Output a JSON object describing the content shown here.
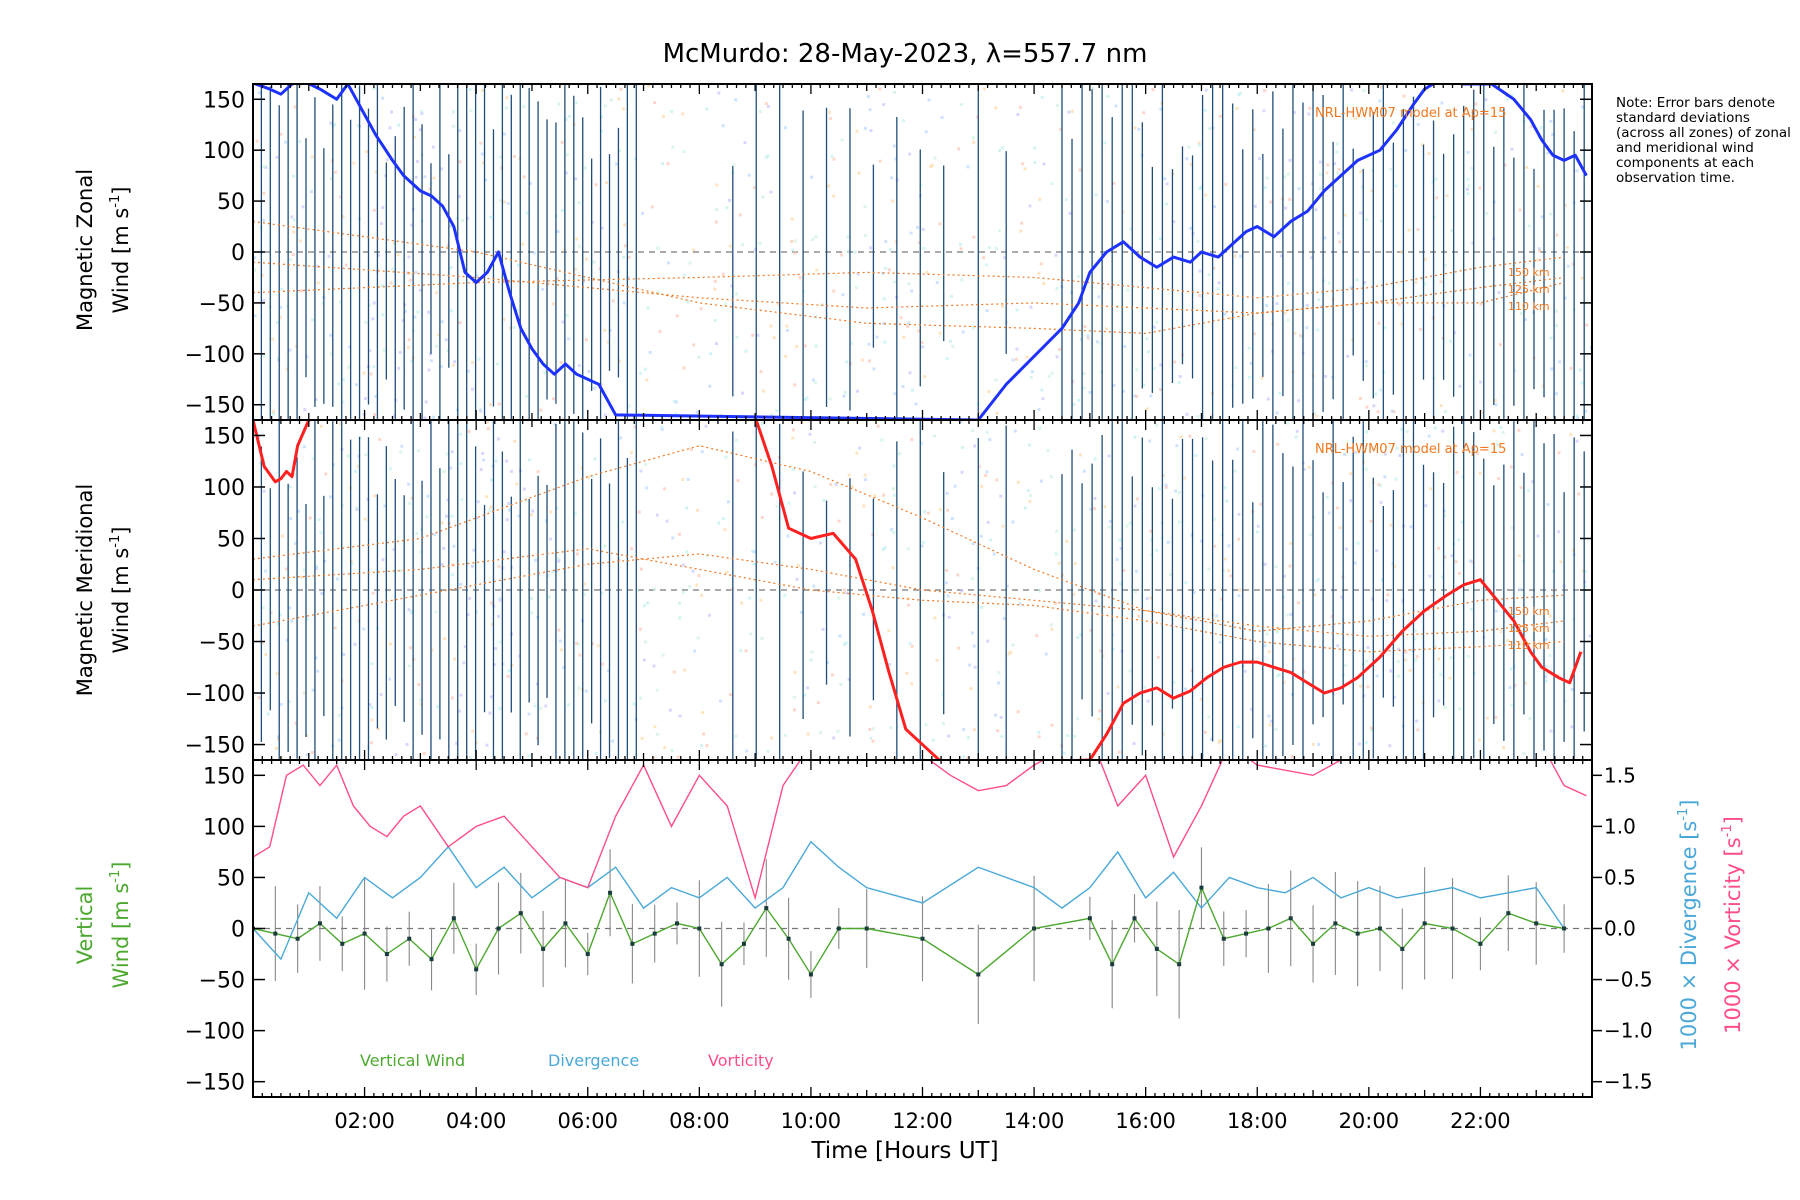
{
  "title": "McMurdo: 28-May-2023, λ=557.7 nm",
  "note": "Note: Error bars denote standard deviations (across all zones) of zonal and meridional wind components at each observation time.",
  "xlabel": "Time [Hours UT]",
  "xticks": [
    "02:00",
    "04:00",
    "06:00",
    "08:00",
    "10:00",
    "12:00",
    "14:00",
    "16:00",
    "18:00",
    "20:00",
    "22:00"
  ],
  "yticks": [
    "150",
    "100",
    "50",
    "0",
    "−50",
    "−100",
    "−150"
  ],
  "right_ticks": [
    "1.5",
    "1.0",
    "0.5",
    "0.0",
    "−0.5",
    "−1.0",
    "−1.5"
  ],
  "panels": {
    "zonal": {
      "ylabel_line1": "Magnetic Zonal",
      "ylabel_line2": "Wind [m s",
      "unit_sup": "-1",
      "model_label": "NRL-HWM07 model at Ap=15",
      "heights": [
        "150 km",
        "125 km",
        "110 km"
      ]
    },
    "meridional": {
      "ylabel_line1": "Magnetic Meridional",
      "ylabel_line2": "Wind [m s",
      "unit_sup": "-1",
      "model_label": "NRL-HWM07 model at Ap=15",
      "heights": [
        "150 km",
        "125 km",
        "110 km"
      ]
    },
    "vertical": {
      "ylabel_line1": "Vertical",
      "ylabel_line2": "Wind [m s",
      "unit_sup": "-1",
      "right_label1": "1000 × Divergence [s",
      "right_label2": "1000 × Vorticity [s",
      "legend": [
        "Vertical Wind",
        "Divergence",
        "Vorticity"
      ]
    }
  },
  "colors": {
    "zonal": "#1e32ff",
    "meridional": "#ff2020",
    "vertical": "#4da830",
    "divergence": "#4aa8d8",
    "vorticity": "#ff4d88",
    "model": "#f07820",
    "errbar": "#1f4e79"
  },
  "chart_data": [
    {
      "type": "line",
      "title": "Magnetic Zonal Wind",
      "xlabel": "Time [Hours UT]",
      "ylabel": "Magnetic Zonal Wind [m s-1]",
      "xlim": [
        0,
        24
      ],
      "ylim": [
        -165,
        165
      ],
      "series": [
        {
          "name": "Zonal wind",
          "x": [
            0.0,
            0.3,
            0.5,
            0.7,
            0.9,
            1.2,
            1.5,
            1.7,
            2.0,
            2.2,
            2.5,
            2.7,
            3.0,
            3.2,
            3.4,
            3.6,
            3.8,
            4.0,
            4.2,
            4.4,
            4.6,
            4.8,
            5.0,
            5.2,
            5.4,
            5.6,
            5.8,
            6.0,
            6.2,
            6.5,
            13.0,
            13.5,
            14.5,
            14.8,
            15.0,
            15.3,
            15.6,
            15.9,
            16.2,
            16.5,
            16.8,
            17.0,
            17.3,
            17.5,
            17.8,
            18.0,
            18.3,
            18.6,
            18.9,
            19.2,
            19.5,
            19.8,
            20.2,
            20.5,
            20.8,
            21.0,
            21.3,
            21.7,
            22.2,
            22.6,
            22.9,
            23.1,
            23.3,
            23.5,
            23.7,
            23.9
          ],
          "values": [
            166,
            160,
            155,
            165,
            168,
            160,
            150,
            165,
            135,
            115,
            90,
            75,
            60,
            55,
            45,
            25,
            -20,
            -30,
            -20,
            0,
            -40,
            -75,
            -95,
            -110,
            -120,
            -110,
            -120,
            -125,
            -130,
            -160,
            -165,
            -130,
            -75,
            -50,
            -20,
            0,
            10,
            -5,
            -15,
            -5,
            -10,
            0,
            -5,
            5,
            20,
            25,
            15,
            30,
            40,
            60,
            75,
            90,
            100,
            120,
            145,
            160,
            170,
            165,
            165,
            150,
            130,
            110,
            95,
            90,
            95,
            75
          ]
        }
      ],
      "model": [
        {
          "name": "150 km",
          "x": [
            0,
            4,
            8,
            11,
            14,
            16,
            18,
            20,
            22,
            23.5
          ],
          "values": [
            -40,
            -30,
            -25,
            -20,
            -25,
            -35,
            -45,
            -35,
            -15,
            -5
          ]
        },
        {
          "name": "125 km",
          "x": [
            0,
            4,
            8,
            11,
            14,
            16,
            18,
            20,
            22,
            23.5
          ],
          "values": [
            -10,
            -25,
            -45,
            -55,
            -50,
            -55,
            -60,
            -50,
            -35,
            -25
          ]
        },
        {
          "name": "110 km",
          "x": [
            0,
            4,
            8,
            11,
            14,
            16,
            18,
            20,
            22,
            23.5
          ],
          "values": [
            30,
            0,
            -50,
            -70,
            -75,
            -80,
            -60,
            -50,
            -50,
            -30
          ]
        }
      ]
    },
    {
      "type": "line",
      "title": "Magnetic Meridional Wind",
      "xlabel": "Time [Hours UT]",
      "ylabel": "Magnetic Meridional Wind [m s-1]",
      "xlim": [
        0,
        24
      ],
      "ylim": [
        -165,
        165
      ],
      "series": [
        {
          "name": "Meridional wind",
          "x": [
            0.0,
            0.2,
            0.4,
            0.5,
            0.6,
            0.7,
            0.8,
            1.0,
            1.2,
            9.0,
            9.3,
            9.6,
            10.0,
            10.4,
            10.8,
            11.1,
            11.4,
            11.7,
            12.0,
            12.4,
            15.0,
            15.3,
            15.6,
            15.9,
            16.2,
            16.5,
            16.8,
            17.1,
            17.4,
            17.7,
            18.0,
            18.3,
            18.6,
            18.9,
            19.2,
            19.5,
            19.8,
            20.2,
            20.6,
            21.0,
            21.4,
            21.7,
            22.0,
            22.3,
            22.6,
            22.9,
            23.1,
            23.4,
            23.6,
            23.8
          ],
          "values": [
            165,
            120,
            105,
            108,
            115,
            110,
            140,
            165,
            168,
            168,
            120,
            60,
            50,
            55,
            30,
            -20,
            -80,
            -135,
            -150,
            -170,
            -165,
            -140,
            -110,
            -100,
            -95,
            -105,
            -98,
            -85,
            -75,
            -70,
            -70,
            -75,
            -80,
            -90,
            -100,
            -95,
            -85,
            -65,
            -40,
            -20,
            -5,
            5,
            10,
            -10,
            -30,
            -60,
            -75,
            -85,
            -90,
            -60
          ]
        }
      ],
      "model": [
        {
          "name": "150 km",
          "x": [
            0,
            3,
            6,
            8,
            10,
            12,
            14,
            16,
            18,
            20,
            22,
            23.5
          ],
          "values": [
            30,
            50,
            110,
            140,
            115,
            70,
            20,
            -20,
            -40,
            -30,
            -10,
            -5
          ]
        },
        {
          "name": "125 km",
          "x": [
            0,
            3,
            6,
            8,
            10,
            12,
            14,
            16,
            18,
            20,
            22,
            23.5
          ],
          "values": [
            -35,
            -5,
            25,
            35,
            20,
            0,
            -10,
            -20,
            -35,
            -45,
            -40,
            -30
          ]
        },
        {
          "name": "110 km",
          "x": [
            0,
            3,
            6,
            8,
            10,
            12,
            14,
            16,
            18,
            20,
            22,
            23.5
          ],
          "values": [
            10,
            20,
            40,
            20,
            0,
            -10,
            -15,
            -30,
            -50,
            -60,
            -55,
            -50
          ]
        }
      ]
    },
    {
      "type": "line",
      "title": "Vertical Wind, Divergence, Vorticity",
      "xlabel": "Time [Hours UT]",
      "ylabel": "Vertical Wind [m s-1]",
      "xlim": [
        0,
        24
      ],
      "ylim": [
        -165,
        165
      ],
      "y2lim": [
        -1.65,
        1.65
      ],
      "series": [
        {
          "name": "Vertical Wind",
          "axis": "left",
          "x": [
            0.0,
            0.4,
            0.8,
            1.2,
            1.6,
            2.0,
            2.4,
            2.8,
            3.2,
            3.6,
            4.0,
            4.4,
            4.8,
            5.2,
            5.6,
            6.0,
            6.4,
            6.8,
            7.2,
            7.6,
            8.0,
            8.4,
            8.8,
            9.2,
            9.6,
            10.0,
            10.5,
            11.0,
            12.0,
            13.0,
            14.0,
            15.0,
            15.4,
            15.8,
            16.2,
            16.6,
            17.0,
            17.4,
            17.8,
            18.2,
            18.6,
            19.0,
            19.4,
            19.8,
            20.2,
            20.6,
            21.0,
            21.5,
            22.0,
            22.5,
            23.0,
            23.5
          ],
          "values": [
            0,
            -5,
            -10,
            5,
            -15,
            -5,
            -25,
            -10,
            -30,
            10,
            -40,
            0,
            15,
            -20,
            5,
            -25,
            35,
            -15,
            -5,
            5,
            0,
            -35,
            -15,
            20,
            -10,
            -45,
            0,
            0,
            -10,
            -45,
            0,
            10,
            -35,
            10,
            -20,
            -35,
            40,
            -10,
            -5,
            0,
            10,
            -15,
            5,
            -5,
            0,
            -20,
            5,
            0,
            -15,
            15,
            5,
            0
          ]
        },
        {
          "name": "Divergence",
          "axis": "right",
          "x": [
            0.0,
            0.5,
            1.0,
            1.5,
            2.0,
            2.5,
            3.0,
            3.5,
            4.0,
            4.5,
            5.0,
            5.5,
            6.0,
            6.5,
            7.0,
            7.5,
            8.0,
            8.5,
            9.0,
            9.5,
            10.0,
            10.5,
            11.0,
            12.0,
            13.0,
            14.0,
            14.5,
            15.0,
            15.5,
            16.0,
            16.5,
            17.0,
            17.5,
            18.0,
            18.5,
            19.0,
            19.5,
            20.0,
            20.5,
            21.0,
            21.5,
            22.0,
            22.5,
            23.0,
            23.5
          ],
          "values": [
            0.0,
            -0.3,
            0.35,
            0.1,
            0.5,
            0.3,
            0.5,
            0.8,
            0.4,
            0.6,
            0.3,
            0.5,
            0.4,
            0.6,
            0.2,
            0.4,
            0.3,
            0.5,
            0.2,
            0.4,
            0.85,
            0.6,
            0.4,
            0.25,
            0.6,
            0.4,
            0.2,
            0.4,
            0.75,
            0.3,
            0.55,
            0.2,
            0.5,
            0.4,
            0.35,
            0.5,
            0.3,
            0.4,
            0.3,
            0.35,
            0.4,
            0.3,
            0.35,
            0.4,
            0.0
          ]
        },
        {
          "name": "Vorticity",
          "axis": "right",
          "x": [
            0.0,
            0.3,
            0.6,
            0.9,
            1.2,
            1.5,
            1.8,
            2.1,
            2.4,
            2.7,
            3.0,
            3.5,
            4.0,
            4.5,
            5.0,
            5.5,
            6.0,
            6.5,
            7.0,
            7.5,
            8.0,
            8.5,
            9.0,
            9.5,
            10.0,
            11.0,
            12.0,
            12.5,
            13.0,
            13.5,
            14.0,
            15.0,
            15.5,
            16.0,
            16.5,
            17.0,
            17.5,
            18.0,
            19.0,
            20.0,
            21.0,
            22.0,
            23.0,
            23.5,
            23.9
          ],
          "values": [
            0.7,
            0.8,
            1.5,
            1.6,
            1.4,
            1.6,
            1.2,
            1.0,
            0.9,
            1.1,
            1.2,
            0.8,
            1.0,
            1.1,
            0.8,
            0.5,
            0.4,
            1.1,
            1.6,
            1.0,
            1.5,
            1.2,
            0.3,
            1.4,
            1.8,
            1.9,
            1.7,
            1.5,
            1.35,
            1.4,
            1.6,
            1.9,
            1.2,
            1.5,
            0.7,
            1.2,
            1.8,
            1.6,
            1.5,
            1.8,
            1.7,
            1.8,
            1.9,
            1.4,
            1.3
          ]
        }
      ]
    }
  ]
}
